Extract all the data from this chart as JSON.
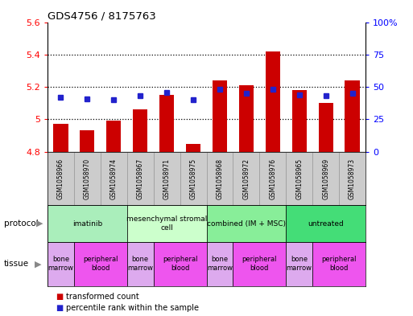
{
  "title": "GDS4756 / 8175763",
  "samples": [
    "GSM1058966",
    "GSM1058970",
    "GSM1058974",
    "GSM1058967",
    "GSM1058971",
    "GSM1058975",
    "GSM1058968",
    "GSM1058972",
    "GSM1058976",
    "GSM1058965",
    "GSM1058969",
    "GSM1058973"
  ],
  "transformed_count": [
    4.97,
    4.93,
    4.99,
    5.06,
    5.15,
    4.85,
    5.24,
    5.21,
    5.42,
    5.18,
    5.1,
    5.24
  ],
  "percentile_rank": [
    42,
    41,
    40,
    43,
    46,
    40,
    48,
    45,
    48,
    44,
    43,
    45
  ],
  "ylim_left": [
    4.8,
    5.6
  ],
  "ylim_right": [
    0,
    100
  ],
  "yticks_left": [
    4.8,
    5.0,
    5.2,
    5.4,
    5.6
  ],
  "ytick_labels_left": [
    "4.8",
    "5",
    "5.2",
    "5.4",
    "5.6"
  ],
  "yticks_right": [
    0,
    25,
    50,
    75,
    100
  ],
  "ytick_labels_right": [
    "0",
    "25",
    "50",
    "75",
    "100%"
  ],
  "bar_color": "#cc0000",
  "dot_color": "#2222cc",
  "bar_bottom": 4.8,
  "protocols": [
    {
      "label": "imatinib",
      "start": 0,
      "end": 3,
      "color": "#aaeebb"
    },
    {
      "label": "mesenchymal stromal\ncell",
      "start": 3,
      "end": 6,
      "color": "#ccffcc"
    },
    {
      "label": "combined (IM + MSC)",
      "start": 6,
      "end": 9,
      "color": "#88ee99"
    },
    {
      "label": "untreated",
      "start": 9,
      "end": 12,
      "color": "#44dd77"
    }
  ],
  "tissues": [
    {
      "label": "bone\nmarrow",
      "start": 0,
      "end": 1,
      "color": "#ddaaee"
    },
    {
      "label": "peripheral\nblood",
      "start": 1,
      "end": 3,
      "color": "#ee55ee"
    },
    {
      "label": "bone\nmarrow",
      "start": 3,
      "end": 4,
      "color": "#ddaaee"
    },
    {
      "label": "peripheral\nblood",
      "start": 4,
      "end": 6,
      "color": "#ee55ee"
    },
    {
      "label": "bone\nmarrow",
      "start": 6,
      "end": 7,
      "color": "#ddaaee"
    },
    {
      "label": "peripheral\nblood",
      "start": 7,
      "end": 9,
      "color": "#ee55ee"
    },
    {
      "label": "bone\nmarrow",
      "start": 9,
      "end": 10,
      "color": "#ddaaee"
    },
    {
      "label": "peripheral\nblood",
      "start": 10,
      "end": 12,
      "color": "#ee55ee"
    }
  ],
  "protocol_label": "protocol",
  "tissue_label": "tissue",
  "legend_bar_label": "transformed count",
  "legend_dot_label": "percentile rank within the sample",
  "fig_width": 5.13,
  "fig_height": 3.93,
  "dpi": 100,
  "bg_color": "#ffffff"
}
